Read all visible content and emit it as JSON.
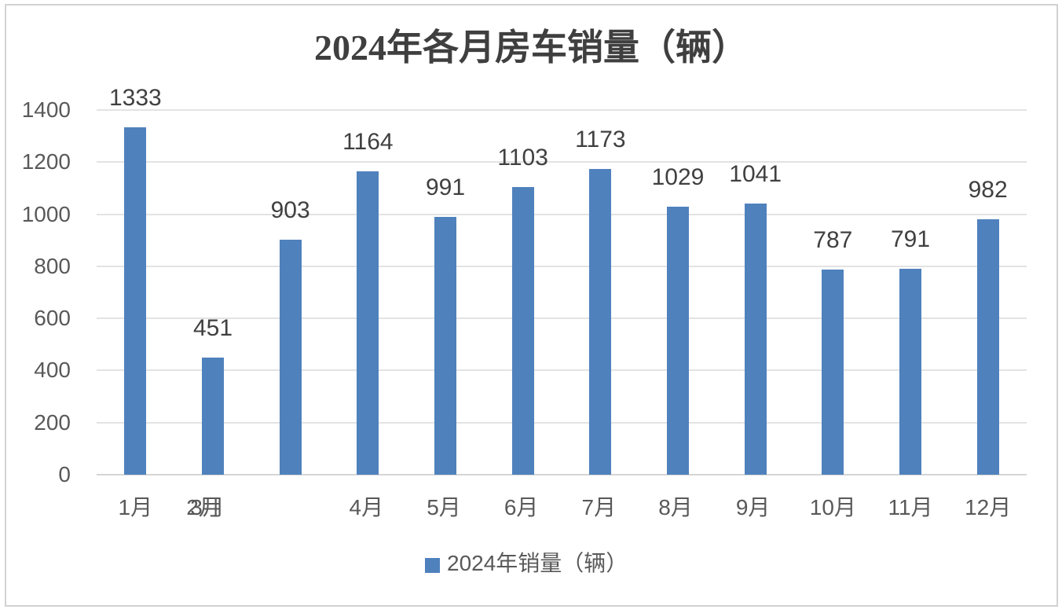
{
  "window": {
    "background_color": "#ffffff",
    "border_color": "#d2d2d2"
  },
  "chart_data": {
    "type": "bar",
    "title": "2024年各月房车销量（辆）",
    "series_name": "2024年销量（辆）",
    "categories": [
      "1月",
      "2月",
      "3月",
      "4月",
      "5月",
      "6月",
      "7月",
      "8月",
      "9月",
      "10月",
      "11月",
      "12月"
    ],
    "values": [
      1333,
      451,
      903,
      1164,
      991,
      1103,
      1173,
      1029,
      1041,
      787,
      791,
      982
    ],
    "data_labels_shown": true,
    "ylabel": "",
    "xlabel": "",
    "ylim": [
      0,
      1400
    ],
    "yticks": [
      0,
      200,
      400,
      600,
      800,
      1000,
      1200,
      1400
    ],
    "grid": true,
    "legend_position": "bottom",
    "bar_color": "#4f81bd",
    "x_axis_rendered_labels": [
      {
        "text": "1月",
        "slot": 0,
        "dx": 0
      },
      {
        "text": "2月",
        "slot": 1,
        "dx": -12
      },
      {
        "text": "3月",
        "slot": 1,
        "dx": -7
      },
      {
        "text": "4月",
        "slot": 3,
        "dx": -2
      },
      {
        "text": "5月",
        "slot": 4,
        "dx": -2
      },
      {
        "text": "6月",
        "slot": 5,
        "dx": -2
      },
      {
        "text": "7月",
        "slot": 6,
        "dx": -2
      },
      {
        "text": "8月",
        "slot": 7,
        "dx": -3
      },
      {
        "text": "9月",
        "slot": 8,
        "dx": -3
      },
      {
        "text": "10月",
        "slot": 9,
        "dx": 0
      },
      {
        "text": "11月",
        "slot": 10,
        "dx": 0
      },
      {
        "text": "12月",
        "slot": 11,
        "dx": 0
      }
    ]
  }
}
